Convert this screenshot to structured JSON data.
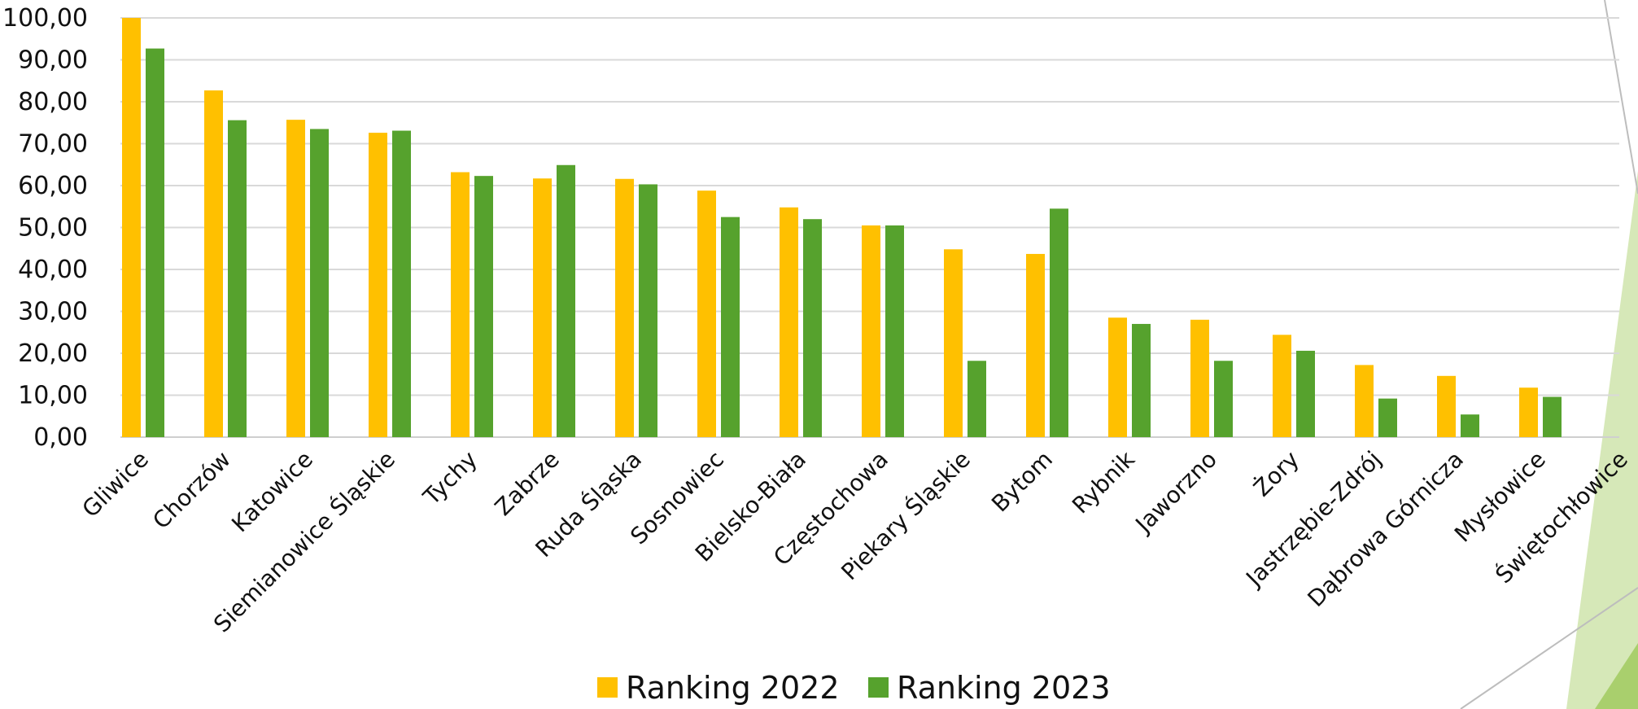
{
  "chart_data": {
    "type": "bar",
    "title": "",
    "xlabel": "",
    "ylabel": "",
    "ylim": [
      0,
      100
    ],
    "yticks": [
      "0,00",
      "10,00",
      "20,00",
      "30,00",
      "40,00",
      "50,00",
      "60,00",
      "70,00",
      "80,00",
      "90,00",
      "100,00"
    ],
    "grid": true,
    "legend_position": "bottom",
    "categories": [
      "Gliwice",
      "Chorzów",
      "Katowice",
      "Siemianowice Śląskie",
      "Tychy",
      "Zabrze",
      "Ruda Śląska",
      "Sosnowiec",
      "Bielsko-Biała",
      "Częstochowa",
      "Piekary Śląskie",
      "Bytom",
      "Rybnik",
      "Jaworzno",
      "Żory",
      "Jastrzębie-Zdrój",
      "Dąbrowa Górnicza",
      "Mysłowice",
      "Świętochłowice"
    ],
    "series": [
      {
        "name": "Ranking 2022",
        "color": "#FFC000",
        "values": [
          100.0,
          82.7,
          75.7,
          72.6,
          63.2,
          61.7,
          61.6,
          58.8,
          54.8,
          50.5,
          44.8,
          43.7,
          28.5,
          28.0,
          24.4,
          17.2,
          14.6,
          11.8,
          0
        ]
      },
      {
        "name": "Ranking 2023",
        "color": "#56A22D",
        "values": [
          92.7,
          75.6,
          73.5,
          73.1,
          62.3,
          64.9,
          60.3,
          52.5,
          52.0,
          50.5,
          18.2,
          54.5,
          27.0,
          18.2,
          20.6,
          9.2,
          5.4,
          9.6,
          0
        ]
      }
    ]
  },
  "decoration": {
    "accent_light": "#D6E8B8",
    "accent_mid": "#A9CF6D",
    "line_color": "#bdbdbd"
  }
}
